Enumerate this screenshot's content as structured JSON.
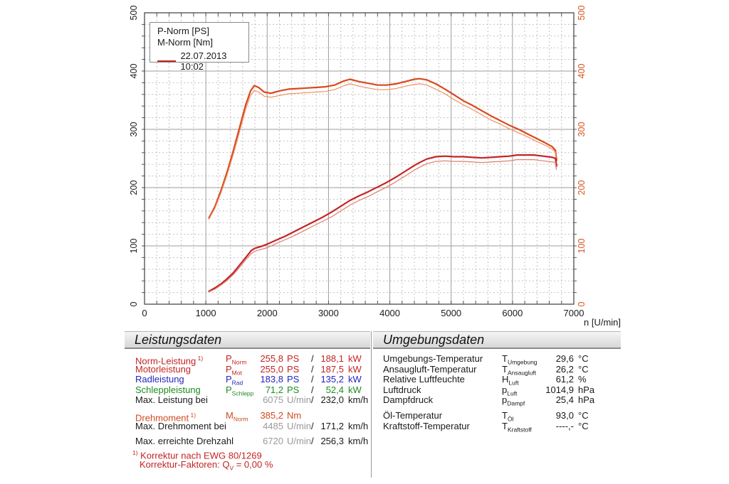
{
  "chart": {
    "legend": {
      "power_label": "P-Norm [PS]",
      "torque_label": "M-Norm [Nm]",
      "run_date": "22.07.2013 10:02"
    },
    "axis_colors": {
      "left": "#1a1a1a",
      "right": "#d9531c",
      "x": "#1a1a1a"
    }
  },
  "chart_data": {
    "type": "line",
    "title": "",
    "xlabel": "n [U/min]",
    "ylabel_left": "P-Norm [PS]",
    "ylabel_right": "M-Norm [Nm]",
    "xlim": [
      0,
      7000
    ],
    "ylim": [
      0,
      500
    ],
    "x_ticks": [
      0,
      1000,
      2000,
      3000,
      4000,
      5000,
      6000,
      7000
    ],
    "y_ticks": [
      0,
      100,
      200,
      300,
      400,
      500
    ],
    "x_minor_step": 200,
    "y_minor_step": 20,
    "grid": true,
    "legend_position": "top-left",
    "series": [
      {
        "name": "M-Norm [Nm] run A",
        "color": "#d9481f",
        "width": 2.2,
        "points": [
          [
            1050,
            148
          ],
          [
            1150,
            168
          ],
          [
            1250,
            196
          ],
          [
            1350,
            228
          ],
          [
            1450,
            264
          ],
          [
            1550,
            303
          ],
          [
            1650,
            342
          ],
          [
            1730,
            366
          ],
          [
            1790,
            375
          ],
          [
            1860,
            372
          ],
          [
            1950,
            364
          ],
          [
            2060,
            362
          ],
          [
            2200,
            366
          ],
          [
            2350,
            369
          ],
          [
            2500,
            370
          ],
          [
            2650,
            371
          ],
          [
            2800,
            372
          ],
          [
            2950,
            373
          ],
          [
            3100,
            376
          ],
          [
            3250,
            383
          ],
          [
            3350,
            386
          ],
          [
            3500,
            382
          ],
          [
            3650,
            379
          ],
          [
            3800,
            376
          ],
          [
            3950,
            376
          ],
          [
            4100,
            378
          ],
          [
            4250,
            382
          ],
          [
            4400,
            386
          ],
          [
            4485,
            387
          ],
          [
            4600,
            385
          ],
          [
            4750,
            378
          ],
          [
            4900,
            369
          ],
          [
            5050,
            359
          ],
          [
            5200,
            349
          ],
          [
            5350,
            341
          ],
          [
            5500,
            332
          ],
          [
            5650,
            323
          ],
          [
            5800,
            315
          ],
          [
            5950,
            307
          ],
          [
            6100,
            300
          ],
          [
            6250,
            292
          ],
          [
            6400,
            284
          ],
          [
            6550,
            276
          ],
          [
            6650,
            270
          ],
          [
            6700,
            264
          ],
          [
            6720,
            247
          ]
        ]
      },
      {
        "name": "M-Norm [Nm] run B",
        "color": "#ec9263",
        "width": 1.2,
        "points": [
          [
            1050,
            146
          ],
          [
            1150,
            165
          ],
          [
            1250,
            192
          ],
          [
            1350,
            223
          ],
          [
            1450,
            258
          ],
          [
            1550,
            296
          ],
          [
            1650,
            335
          ],
          [
            1730,
            358
          ],
          [
            1790,
            367
          ],
          [
            1860,
            364
          ],
          [
            1950,
            357
          ],
          [
            2060,
            355
          ],
          [
            2200,
            358
          ],
          [
            2350,
            361
          ],
          [
            2500,
            362
          ],
          [
            2650,
            363
          ],
          [
            2800,
            364
          ],
          [
            2950,
            365
          ],
          [
            3100,
            368
          ],
          [
            3250,
            375
          ],
          [
            3350,
            378
          ],
          [
            3500,
            374
          ],
          [
            3650,
            371
          ],
          [
            3800,
            368
          ],
          [
            3950,
            368
          ],
          [
            4100,
            370
          ],
          [
            4250,
            374
          ],
          [
            4400,
            377
          ],
          [
            4485,
            378
          ],
          [
            4600,
            376
          ],
          [
            4750,
            369
          ],
          [
            4900,
            361
          ],
          [
            5050,
            351
          ],
          [
            5200,
            342
          ],
          [
            5350,
            334
          ],
          [
            5500,
            325
          ],
          [
            5650,
            316
          ],
          [
            5800,
            309
          ],
          [
            5950,
            301
          ],
          [
            6100,
            294
          ],
          [
            6250,
            287
          ],
          [
            6400,
            279
          ],
          [
            6550,
            272
          ],
          [
            6650,
            266
          ],
          [
            6700,
            261
          ],
          [
            6715,
            252
          ]
        ]
      },
      {
        "name": "P-Norm [PS] run A",
        "color": "#c32424",
        "width": 2.2,
        "points": [
          [
            1050,
            22
          ],
          [
            1150,
            28
          ],
          [
            1250,
            35
          ],
          [
            1350,
            44
          ],
          [
            1450,
            54
          ],
          [
            1550,
            67
          ],
          [
            1650,
            80
          ],
          [
            1740,
            92
          ],
          [
            1800,
            96
          ],
          [
            1900,
            99
          ],
          [
            2000,
            103
          ],
          [
            2150,
            110
          ],
          [
            2300,
            117
          ],
          [
            2450,
            125
          ],
          [
            2600,
            133
          ],
          [
            2750,
            141
          ],
          [
            2900,
            149
          ],
          [
            3050,
            158
          ],
          [
            3200,
            168
          ],
          [
            3350,
            178
          ],
          [
            3500,
            186
          ],
          [
            3650,
            193
          ],
          [
            3800,
            201
          ],
          [
            3950,
            209
          ],
          [
            4100,
            218
          ],
          [
            4250,
            228
          ],
          [
            4400,
            238
          ],
          [
            4485,
            243
          ],
          [
            4600,
            249
          ],
          [
            4750,
            253
          ],
          [
            4900,
            254
          ],
          [
            5050,
            253
          ],
          [
            5200,
            253
          ],
          [
            5350,
            252
          ],
          [
            5500,
            251
          ],
          [
            5650,
            252
          ],
          [
            5800,
            253
          ],
          [
            5950,
            254
          ],
          [
            6075,
            256
          ],
          [
            6200,
            256
          ],
          [
            6350,
            256
          ],
          [
            6500,
            254
          ],
          [
            6650,
            252
          ],
          [
            6700,
            250
          ],
          [
            6720,
            237
          ]
        ]
      },
      {
        "name": "P-Norm [PS] run B",
        "color": "#de7e6e",
        "width": 1.2,
        "points": [
          [
            1050,
            21
          ],
          [
            1150,
            26
          ],
          [
            1250,
            33
          ],
          [
            1350,
            41
          ],
          [
            1450,
            51
          ],
          [
            1550,
            63
          ],
          [
            1650,
            76
          ],
          [
            1740,
            87
          ],
          [
            1800,
            91
          ],
          [
            1900,
            94
          ],
          [
            2000,
            97
          ],
          [
            2150,
            104
          ],
          [
            2300,
            111
          ],
          [
            2450,
            118
          ],
          [
            2600,
            126
          ],
          [
            2750,
            134
          ],
          [
            2900,
            142
          ],
          [
            3050,
            150
          ],
          [
            3200,
            160
          ],
          [
            3350,
            170
          ],
          [
            3500,
            178
          ],
          [
            3650,
            185
          ],
          [
            3800,
            193
          ],
          [
            3950,
            201
          ],
          [
            4100,
            210
          ],
          [
            4250,
            220
          ],
          [
            4400,
            230
          ],
          [
            4485,
            235
          ],
          [
            4600,
            241
          ],
          [
            4750,
            245
          ],
          [
            4900,
            246
          ],
          [
            5050,
            245
          ],
          [
            5200,
            245
          ],
          [
            5350,
            244
          ],
          [
            5500,
            243
          ],
          [
            5650,
            244
          ],
          [
            5800,
            245
          ],
          [
            5950,
            246
          ],
          [
            6075,
            248
          ],
          [
            6200,
            248
          ],
          [
            6350,
            248
          ],
          [
            6500,
            246
          ],
          [
            6650,
            244
          ],
          [
            6700,
            243
          ],
          [
            6715,
            231
          ]
        ]
      }
    ]
  },
  "colors": {
    "red": "#c32424",
    "torque": "#d14a22",
    "blue": "#2424c0",
    "green": "#1f8c1f",
    "black": "#1a1a1a",
    "muted": "#9a9a9a"
  },
  "tables": {
    "leistungsdaten": {
      "title": "Leistungsdaten",
      "rows": [
        {
          "label": "Norm-Leistung",
          "sup": "1)",
          "sym": "P",
          "sub": "Norm",
          "v1": "255,8",
          "u1": "PS",
          "slash": "/",
          "v2": "188,1",
          "u2": "kW",
          "color": "red"
        },
        {
          "label": "Motorleistung",
          "sym": "P",
          "sub": "Mot",
          "v1": "255,0",
          "u1": "PS",
          "slash": "/",
          "v2": "187,5",
          "u2": "kW",
          "color": "red"
        },
        {
          "label": "Radleistung",
          "sym": "P",
          "sub": "Rad",
          "v1": "183,8",
          "u1": "PS",
          "slash": "/",
          "v2": "135,2",
          "u2": "kW",
          "color": "blue"
        },
        {
          "label": "Schleppleistung",
          "sym": "P",
          "sub": "Schlepp",
          "v1": "71,2",
          "u1": "PS",
          "slash": "/",
          "v2": "52,4",
          "u2": "kW",
          "color": "green"
        },
        {
          "label": "Max. Leistung bei",
          "v1": "6075",
          "u1": "U/min",
          "slash": "/",
          "v2": "232,0",
          "u2": "km/h",
          "color": "black",
          "muted1": true
        },
        {
          "label": "Drehmoment",
          "sup": "1)",
          "sym": "M",
          "sub": "Norm",
          "v1": "385,2",
          "u1": "Nm",
          "color": "torque",
          "gap": true
        },
        {
          "label": "Max. Drehmoment bei",
          "v1": "4485",
          "u1": "U/min",
          "slash": "/",
          "v2": "171,2",
          "u2": "km/h",
          "color": "black",
          "muted1": true
        },
        {
          "label": "Max. erreichte Drehzahl",
          "v1": "6720",
          "u1": "U/min",
          "slash": "/",
          "v2": "256,3",
          "u2": "km/h",
          "color": "black",
          "muted1": true,
          "gap": true
        }
      ],
      "footnote_sup": "1)",
      "footnote_text": " Korrektur nach EWG 80/1269",
      "footnote2_pre": "Korrektur-Faktoren: Q",
      "footnote2_sub": "V",
      "footnote2_post": " =   0,00 %"
    },
    "umgebungsdaten": {
      "title": "Umgebungsdaten",
      "rows": [
        {
          "label": "Umgebungs-Temperatur",
          "sym": "T",
          "sub": "Umgebung",
          "v1": "29,6",
          "u1": "°C"
        },
        {
          "label": "Ansaugluft-Temperatur",
          "sym": "T",
          "sub": "Ansaugluft",
          "v1": "26,2",
          "u1": "°C"
        },
        {
          "label": "Relative Luftfeuchte",
          "sym": "H",
          "sub": "Luft",
          "v1": "61,2",
          "u1": "%"
        },
        {
          "label": "Luftdruck",
          "sym": "p",
          "sub": "Luft",
          "v1": "1014,9",
          "u1": "hPa"
        },
        {
          "label": "Dampfdruck",
          "sym": "p",
          "sub": "Dampf",
          "v1": "25,4",
          "u1": "hPa"
        },
        {
          "label": "Öl-Temperatur",
          "sym": "T",
          "sub": "Öl",
          "v1": "93,0",
          "u1": "°C",
          "gap": true
        },
        {
          "label": "Kraftstoff-Temperatur",
          "sym": "T",
          "sub": "Kraftstoff",
          "v1": "----,-",
          "u1": "°C"
        }
      ]
    }
  }
}
